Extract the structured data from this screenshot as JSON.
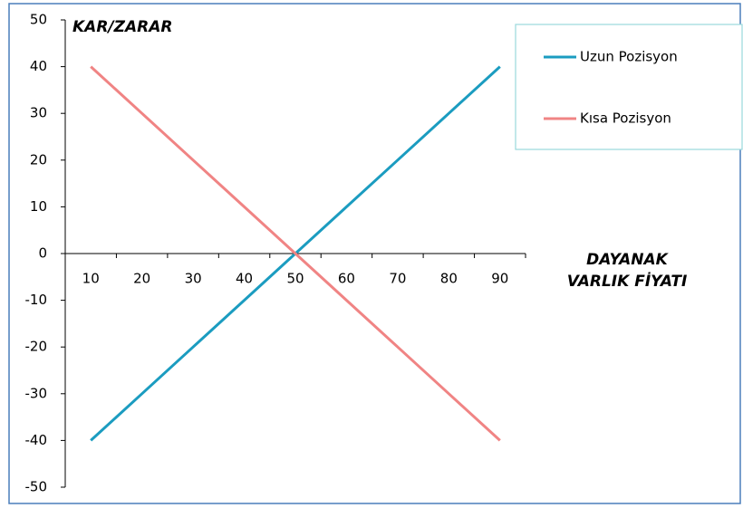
{
  "chart_data": {
    "type": "line",
    "ylabel": "KAR/ZARAR",
    "xlabel": [
      "DAYANAK",
      "VARLIK FİYATI"
    ],
    "categories": [
      "10",
      "20",
      "30",
      "40",
      "50",
      "60",
      "70",
      "80",
      "90"
    ],
    "series": [
      {
        "name": "Uzun Pozisyon",
        "color": "#1b9cc0",
        "values": [
          -40,
          -30,
          -20,
          -10,
          0,
          10,
          20,
          30,
          40
        ]
      },
      {
        "name": "Kısa Pozisyon",
        "color": "#f08484",
        "values": [
          40,
          30,
          20,
          10,
          0,
          -10,
          -20,
          -30,
          -40
        ]
      }
    ],
    "ylim": [
      -50,
      50
    ],
    "yticks": [
      -50,
      -40,
      -30,
      -20,
      -10,
      0,
      10,
      20,
      30,
      40,
      50
    ],
    "grid": false,
    "legend": "top-right"
  }
}
